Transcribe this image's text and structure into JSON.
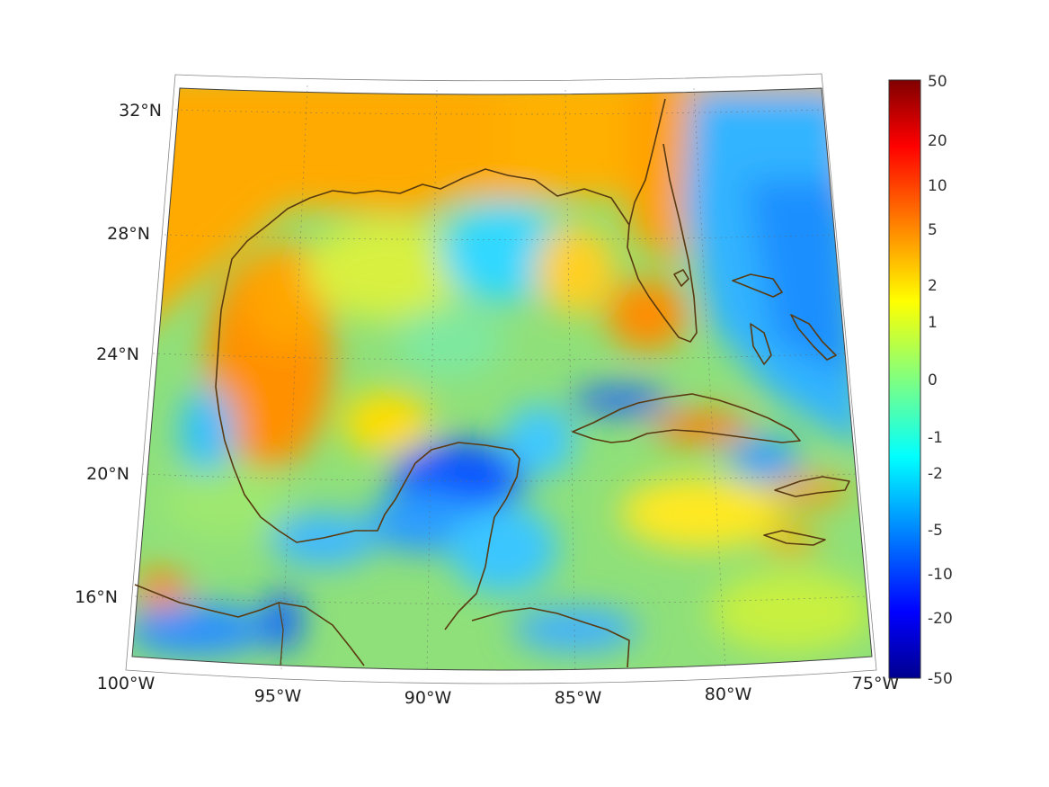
{
  "map": {
    "lat_labels": [
      "32°N",
      "28°N",
      "24°N",
      "20°N",
      "16°N"
    ],
    "lon_labels": [
      "100°W",
      "95°W",
      "90°W",
      "85°W",
      "80°W",
      "75°W"
    ],
    "projection": "conic",
    "extent": {
      "lon": [
        -100,
        -75
      ],
      "lat": [
        14,
        33
      ]
    },
    "coastline_color": "#5a3a10",
    "grid": true
  },
  "colorbar": {
    "tick_labels": [
      "50",
      "20",
      "10",
      "5",
      "2",
      "1",
      "0",
      "-1",
      "-2",
      "-5",
      "-10",
      "-20",
      "-50"
    ],
    "range": [
      -50,
      50
    ],
    "colormap": "jet",
    "colors": [
      "#00008f",
      "#0000ff",
      "#0080ff",
      "#00ffff",
      "#80ff80",
      "#ffff00",
      "#ff8000",
      "#ff0000",
      "#800000"
    ]
  }
}
